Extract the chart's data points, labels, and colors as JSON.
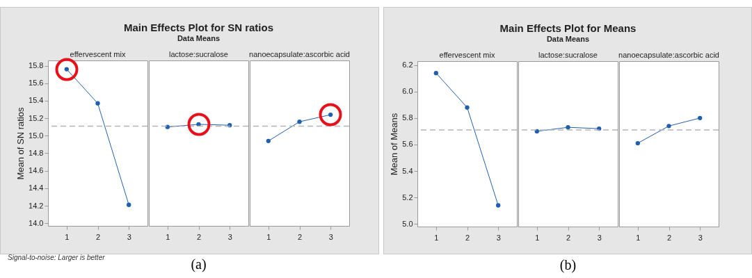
{
  "chart_data": [
    {
      "type": "line",
      "xlabel": "effervescent mix",
      "ylabel": "Mean of SN ratios",
      "annotations": [
        "Signal-to-noise: Larger is better"
      ],
      "categories": [
        "1",
        "2",
        "3"
      ],
      "series": [
        {
          "color": "#1f5fad",
          "values": [
            15.76,
            15.37,
            14.21
          ]
        }
      ],
      "ylim": [
        13.97,
        15.86
      ],
      "yticks": [
        {
          "value": 14,
          "label": "14.0"
        },
        14.2,
        14.4,
        14.6,
        14.8,
        {
          "value": 15,
          "label": "15.0"
        },
        15.2,
        15.4,
        15.6,
        15.8
      ],
      "ref_lines": [
        {
          "axis": "y",
          "value": 15.11,
          "color": "#b4b4b4",
          "line_style": "dashed"
        }
      ],
      "marker": "circle",
      "grid": false
    },
    {
      "type": "line",
      "title": "Main Effects Plot for SN ratios",
      "subtitle": "Data Means",
      "xlabel": "lactose:sucralose",
      "annotations": [
        "(a)"
      ],
      "categories": [
        "1",
        "2",
        "3"
      ],
      "series": [
        {
          "color": "#1f5fad",
          "values": [
            15.1,
            15.13,
            15.12
          ]
        }
      ],
      "ylim": [
        13.97,
        15.86
      ],
      "ref_lines": [
        {
          "axis": "y",
          "value": 15.11,
          "color": "#b4b4b4",
          "line_style": "dashed"
        }
      ],
      "marker": "circle",
      "grid": false,
      "tick_labels": "x"
    },
    {
      "type": "line",
      "xlabel": "nanoecapsulate:ascorbic acid",
      "categories": [
        "1",
        "2",
        "3"
      ],
      "series": [
        {
          "color": "#1f5fad",
          "values": [
            14.94,
            15.16,
            15.24
          ]
        }
      ],
      "ylim": [
        13.97,
        15.86
      ],
      "ref_lines": [
        {
          "axis": "y",
          "value": 15.11,
          "color": "#b4b4b4",
          "line_style": "dashed"
        }
      ],
      "marker": "circle",
      "grid": false,
      "tick_labels": "x"
    },
    {
      "type": "line",
      "xlabel": "effervescent mix",
      "ylabel": "Mean of Means",
      "categories": [
        "1",
        "2",
        "3"
      ],
      "series": [
        {
          "color": "#1f5fad",
          "values": [
            6.14,
            5.88,
            5.14
          ]
        }
      ],
      "ylim": [
        4.98,
        6.23
      ],
      "yticks": [
        {
          "value": 5,
          "label": "5.0"
        },
        5.2,
        5.4,
        5.6,
        5.8,
        {
          "value": 6,
          "label": "6.0"
        },
        6.2
      ],
      "ref_lines": [
        {
          "axis": "y",
          "value": 5.71,
          "color": "#b4b4b4",
          "line_style": "dashed"
        }
      ],
      "marker": "circle",
      "grid": false
    },
    {
      "type": "line",
      "title": "Main Effects Plot for Means",
      "subtitle": "Data Means",
      "xlabel": "lactose:sucralose",
      "annotations": [
        "(b)"
      ],
      "categories": [
        "1",
        "2",
        "3"
      ],
      "series": [
        {
          "color": "#1f5fad",
          "values": [
            5.7,
            5.73,
            5.72
          ]
        }
      ],
      "ylim": [
        4.98,
        6.23
      ],
      "ref_lines": [
        {
          "axis": "y",
          "value": 5.71,
          "color": "#b4b4b4",
          "line_style": "dashed"
        }
      ],
      "marker": "circle",
      "grid": false,
      "tick_labels": "x"
    },
    {
      "type": "line",
      "xlabel": "nanoecapsulate:ascorbic acid",
      "categories": [
        "1",
        "2",
        "3"
      ],
      "series": [
        {
          "color": "#1f5fad",
          "values": [
            5.61,
            5.74,
            5.8
          ]
        }
      ],
      "ylim": [
        4.98,
        6.23
      ],
      "ref_lines": [
        {
          "axis": "y",
          "value": 5.71,
          "color": "#b4b4b4",
          "line_style": "dashed"
        }
      ],
      "marker": "circle",
      "grid": false,
      "tick_labels": "x"
    }
  ]
}
